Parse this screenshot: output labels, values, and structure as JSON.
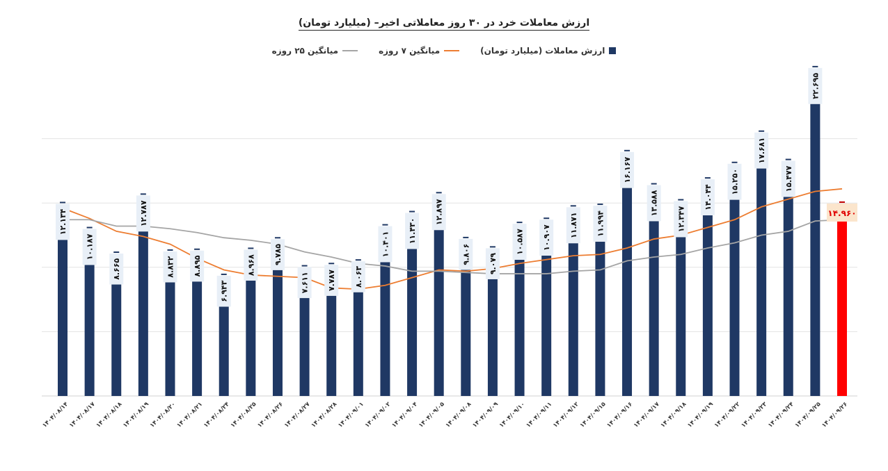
{
  "chart_data": {
    "type": "bar",
    "title": "ارزش معاملات خرد در ۳۰ روز معاملاتی اخیر– (میلیارد تومان)",
    "categories": [
      "۱۴۰۴/۰۸/۱۴",
      "۱۴۰۴/۰۸/۱۷",
      "۱۴۰۴/۰۸/۱۸",
      "۱۴۰۴/۰۸/۱۹",
      "۱۴۰۴/۰۸/۲۰",
      "۱۴۰۴/۰۸/۲۱",
      "۱۴۰۴/۰۸/۲۴",
      "۱۴۰۴/۰۸/۲۵",
      "۱۴۰۴/۰۸/۲۶",
      "۱۴۰۴/۰۸/۲۷",
      "۱۴۰۴/۰۸/۲۸",
      "۱۴۰۴/۰۹/۰۱",
      "۱۴۰۴/۰۹/۰۲",
      "۱۴۰۴/۰۹/۰۴",
      "۱۴۰۴/۰۹/۰۵",
      "۱۴۰۴/۰۹/۰۸",
      "۱۴۰۴/۰۹/۰۹",
      "۱۴۰۴/۰۹/۱۰",
      "۱۴۰۴/۰۹/۱۱",
      "۱۴۰۴/۰۹/۱۲",
      "۱۴۰۴/۰۹/۱۵",
      "۱۴۰۴/۰۹/۱۶",
      "۱۴۰۴/۰۹/۱۷",
      "۱۴۰۴/۰۹/۱۸",
      "۱۴۰۴/۰۹/۱۹",
      "۱۴۰۴/۰۹/۲۲",
      "۱۴۰۴/۰۹/۲۳",
      "۱۴۰۴/۰۹/۲۴",
      "۱۴۰۴/۰۹/۲۵",
      "۱۴۰۴/۰۹/۲۶"
    ],
    "series": [
      {
        "name": "ارزش معاملات (میلیارد تومان)",
        "kind": "bar",
        "color": "#1f3864",
        "highlight_last_color": "#ff0000",
        "values": [
          12.134,
          10.187,
          8.665,
          12.787,
          8.832,
          8.895,
          6.943,
          8.968,
          9.785,
          7.611,
          7.787,
          8.063,
          10.401,
          11.43,
          12.897,
          9.806,
          9.079,
          10.587,
          10.907,
          11.871,
          11.994,
          16.167,
          13.588,
          12.347,
          14.044,
          15.25,
          17.681,
          15.477,
          22.695,
          14.96
        ],
        "labels": [
          "۱۲.۱۳۴",
          "۱۰.۱۸۷",
          "۸.۶۶۵",
          "۱۲.۷۸۷",
          "۸.۸۳۲",
          "۸.۸۹۵",
          "۶.۹۴۳",
          "۸.۹۶۸",
          "۹.۷۸۵",
          "۷.۶۱۱",
          "۷.۷۸۷",
          "۸.۰۶۳",
          "۱۰.۴۰۱",
          "۱۱.۴۳۰",
          "۱۲.۸۹۷",
          "۹.۸۰۶",
          "۹.۰۷۹",
          "۱۰.۵۸۷",
          "۱۰.۹۰۷",
          "۱۱.۸۷۱",
          "۱۱.۹۹۴",
          "۱۶.۱۶۷",
          "۱۳.۵۸۸",
          "۱۲.۳۴۷",
          "۱۴.۰۴۴",
          "۱۵.۲۵۰",
          "۱۷.۶۸۱",
          "۱۵.۴۷۷",
          "۲۲.۶۹۵",
          "۱۴.۹۶۰"
        ]
      },
      {
        "name": "میانگین ۷ روزه",
        "kind": "line",
        "color": "#ed7d31",
        "values": [
          14.6,
          13.8,
          12.8,
          12.4,
          11.8,
          10.7,
          9.8,
          9.4,
          9.3,
          9.2,
          8.4,
          8.3,
          8.6,
          9.2,
          9.8,
          9.7,
          9.9,
          10.3,
          10.6,
          10.9,
          11.0,
          11.5,
          12.2,
          12.5,
          13.1,
          13.7,
          14.7,
          15.3,
          15.9,
          16.1
        ]
      },
      {
        "name": "میانگین ۲۵ روزه",
        "kind": "line",
        "color": "#a5a5a5",
        "values": [
          13.7,
          13.7,
          13.2,
          13.2,
          13.0,
          12.7,
          12.3,
          12.1,
          11.8,
          11.2,
          10.8,
          10.3,
          10.1,
          9.7,
          9.7,
          9.6,
          9.5,
          9.5,
          9.5,
          9.7,
          9.8,
          10.5,
          10.8,
          11.0,
          11.5,
          11.9,
          12.5,
          12.8,
          13.6,
          13.7
        ]
      }
    ],
    "ylim": [
      0,
      25
    ],
    "grid": true,
    "legend": "top"
  }
}
